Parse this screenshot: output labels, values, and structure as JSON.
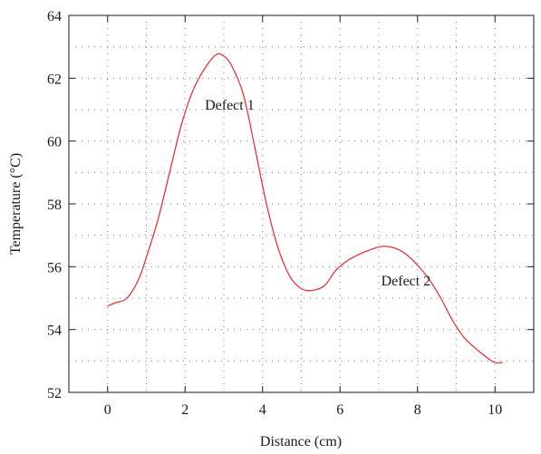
{
  "chart_data": {
    "type": "line",
    "xlabel": "Distance (cm)",
    "ylabel": "Temperature (°C)",
    "xlim": [
      -1,
      11
    ],
    "ylim": [
      52,
      64
    ],
    "xticks": [
      0,
      2,
      4,
      6,
      8,
      10
    ],
    "xtick_labels": [
      "0",
      "2",
      "4",
      "6",
      "8",
      "10"
    ],
    "yticks": [
      52,
      54,
      56,
      58,
      60,
      62,
      64
    ],
    "ytick_labels": [
      "52",
      "54",
      "56",
      "58",
      "60",
      "62",
      "64"
    ],
    "grid": true,
    "grid_style": "dotted",
    "grid_x_step": 1,
    "grid_y_step": 1,
    "series": [
      {
        "color": "#e8262a",
        "x": [
          0,
          0.2,
          0.5,
          0.8,
          1.0,
          1.3,
          1.6,
          1.9,
          2.2,
          2.5,
          2.8,
          3.0,
          3.2,
          3.5,
          3.8,
          4.1,
          4.4,
          4.7,
          5.0,
          5.3,
          5.6,
          5.9,
          6.2,
          6.5,
          6.8,
          7.1,
          7.4,
          7.7,
          8.0,
          8.3,
          8.6,
          8.9,
          9.2,
          9.5,
          9.8,
          10.0,
          10.2
        ],
        "y": [
          54.75,
          54.85,
          55.0,
          55.6,
          56.3,
          57.5,
          59.0,
          60.5,
          61.6,
          62.3,
          62.75,
          62.7,
          62.4,
          61.5,
          59.8,
          58.0,
          56.6,
          55.7,
          55.3,
          55.25,
          55.4,
          55.9,
          56.2,
          56.4,
          56.55,
          56.65,
          56.6,
          56.4,
          56.05,
          55.6,
          55.0,
          54.3,
          53.75,
          53.4,
          53.1,
          52.95,
          52.95
        ]
      }
    ],
    "annotations": [
      {
        "text": "Defect 1",
        "x": 3.15,
        "y": 61.0
      },
      {
        "text": "Defect 2",
        "x": 7.7,
        "y": 55.4
      }
    ]
  }
}
